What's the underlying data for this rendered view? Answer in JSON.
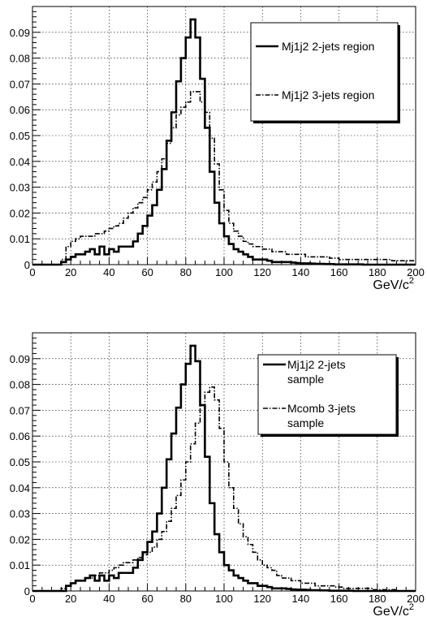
{
  "chart_data": [
    {
      "type": "histogram",
      "xlabel": "GeV/c",
      "xlabel_superscript": "2",
      "xlim": [
        0,
        200
      ],
      "ylim": [
        0,
        0.1
      ],
      "x_ticks": [
        0,
        20,
        40,
        60,
        80,
        100,
        120,
        140,
        160,
        180,
        200
      ],
      "y_ticks": [
        "0",
        "0.01",
        "0.02",
        "0.03",
        "0.04",
        "0.05",
        "0.06",
        "0.07",
        "0.08",
        "0.09"
      ],
      "grid": true,
      "legend_position": "top-right",
      "bin_width": 2.5,
      "series": [
        {
          "name": "Mj1j2 2-jets region",
          "style": "solid",
          "values": [
            0,
            0,
            0,
            0,
            0,
            0,
            0.001,
            0.002,
            0.003,
            0.004,
            0.004,
            0.005,
            0.006,
            0.004,
            0.007,
            0.004,
            0.006,
            0.005,
            0.007,
            0.007,
            0.007,
            0.009,
            0.012,
            0.015,
            0.019,
            0.023,
            0.029,
            0.037,
            0.048,
            0.059,
            0.071,
            0.08,
            0.088,
            0.095,
            0.088,
            0.072,
            0.053,
            0.036,
            0.024,
            0.016,
            0.011,
            0.008,
            0.006,
            0.005,
            0.004,
            0.003,
            0.002,
            0.002,
            0.002,
            0.0015,
            0.001,
            0.001,
            0.001,
            0.001,
            0.0008,
            0.0006,
            0.0005,
            0.0005,
            0.0004,
            0.0003,
            0.0003,
            0.0002,
            0.0002,
            0.0001,
            0.0001,
            0.0001,
            0.0001,
            0.0001,
            0.0001,
            0,
            0,
            0,
            0,
            0,
            0,
            0,
            0,
            0,
            0,
            0
          ]
        },
        {
          "name": "Mj1j2 3-jets region",
          "style": "dash-dot",
          "values": [
            0,
            0,
            0,
            0,
            0,
            0,
            0.002,
            0.007,
            0.009,
            0.01,
            0.011,
            0.011,
            0.011,
            0.012,
            0.012,
            0.013,
            0.014,
            0.015,
            0.016,
            0.018,
            0.02,
            0.022,
            0.024,
            0.026,
            0.029,
            0.032,
            0.036,
            0.041,
            0.047,
            0.053,
            0.058,
            0.061,
            0.063,
            0.067,
            0.067,
            0.063,
            0.059,
            0.049,
            0.039,
            0.029,
            0.021,
            0.016,
            0.013,
            0.011,
            0.009,
            0.008,
            0.007,
            0.007,
            0.006,
            0.006,
            0.005,
            0.005,
            0.005,
            0.004,
            0.004,
            0.004,
            0.004,
            0.003,
            0.003,
            0.003,
            0.003,
            0.003,
            0.0025,
            0.0025,
            0.002,
            0.002,
            0.002,
            0.002,
            0.002,
            0.002,
            0.002,
            0.002,
            0.002,
            0.002,
            0.002,
            0.0015,
            0.0015,
            0.0015,
            0.0015,
            0.0015
          ]
        }
      ]
    },
    {
      "type": "histogram",
      "xlabel": "GeV/c",
      "xlabel_superscript": "2",
      "xlim": [
        0,
        200
      ],
      "ylim": [
        0,
        0.1
      ],
      "x_ticks": [
        0,
        20,
        40,
        60,
        80,
        100,
        120,
        140,
        160,
        180,
        200
      ],
      "y_ticks": [
        "0",
        "0.01",
        "0.02",
        "0.03",
        "0.04",
        "0.05",
        "0.06",
        "0.07",
        "0.08",
        "0.09"
      ],
      "grid": true,
      "legend_position": "top-right",
      "bin_width": 2.5,
      "series": [
        {
          "name": "Mj1j2 2-jets sample",
          "name_lines": [
            "Mj1j2 2-jets",
            "sample"
          ],
          "style": "solid",
          "values": [
            0,
            0,
            0,
            0,
            0,
            0,
            0,
            0.002,
            0.003,
            0.004,
            0.004,
            0.005,
            0.006,
            0.004,
            0.006,
            0.004,
            0.006,
            0.005,
            0.007,
            0.007,
            0.007,
            0.009,
            0.012,
            0.015,
            0.019,
            0.023,
            0.03,
            0.04,
            0.051,
            0.061,
            0.071,
            0.08,
            0.088,
            0.095,
            0.089,
            0.072,
            0.052,
            0.034,
            0.022,
            0.015,
            0.01,
            0.008,
            0.006,
            0.005,
            0.004,
            0.003,
            0.003,
            0.002,
            0.002,
            0.0015,
            0.001,
            0.001,
            0.001,
            0.0008,
            0.0006,
            0.0005,
            0.0005,
            0.0004,
            0.0003,
            0.0003,
            0.0002,
            0.0002,
            0.0001,
            0.0001,
            0.0001,
            0.0001,
            0.0001,
            0,
            0,
            0,
            0,
            0,
            0,
            0,
            0,
            0,
            0,
            0,
            0,
            0
          ]
        },
        {
          "name": "Mcomb 3-jets sample",
          "name_lines": [
            "Mcomb 3-jets",
            "sample"
          ],
          "style": "dash-dot",
          "values": [
            0,
            0,
            0,
            0,
            0,
            0,
            0.001,
            0.002,
            0.003,
            0.004,
            0.004,
            0.005,
            0.005,
            0.006,
            0.007,
            0.007,
            0.008,
            0.009,
            0.01,
            0.011,
            0.011,
            0.012,
            0.013,
            0.014,
            0.015,
            0.017,
            0.02,
            0.023,
            0.027,
            0.032,
            0.037,
            0.043,
            0.05,
            0.057,
            0.065,
            0.072,
            0.077,
            0.079,
            0.074,
            0.063,
            0.05,
            0.04,
            0.032,
            0.026,
            0.021,
            0.018,
            0.015,
            0.012,
            0.01,
            0.009,
            0.008,
            0.006,
            0.005,
            0.005,
            0.004,
            0.004,
            0.003,
            0.003,
            0.003,
            0.002,
            0.002,
            0.002,
            0.002,
            0.0015,
            0.0015,
            0.001,
            0.001,
            0.001,
            0.001,
            0.001,
            0.001,
            0.0005,
            0.0005,
            0.0005,
            0.0005,
            0.0005,
            0,
            0,
            0,
            0
          ]
        }
      ]
    }
  ]
}
